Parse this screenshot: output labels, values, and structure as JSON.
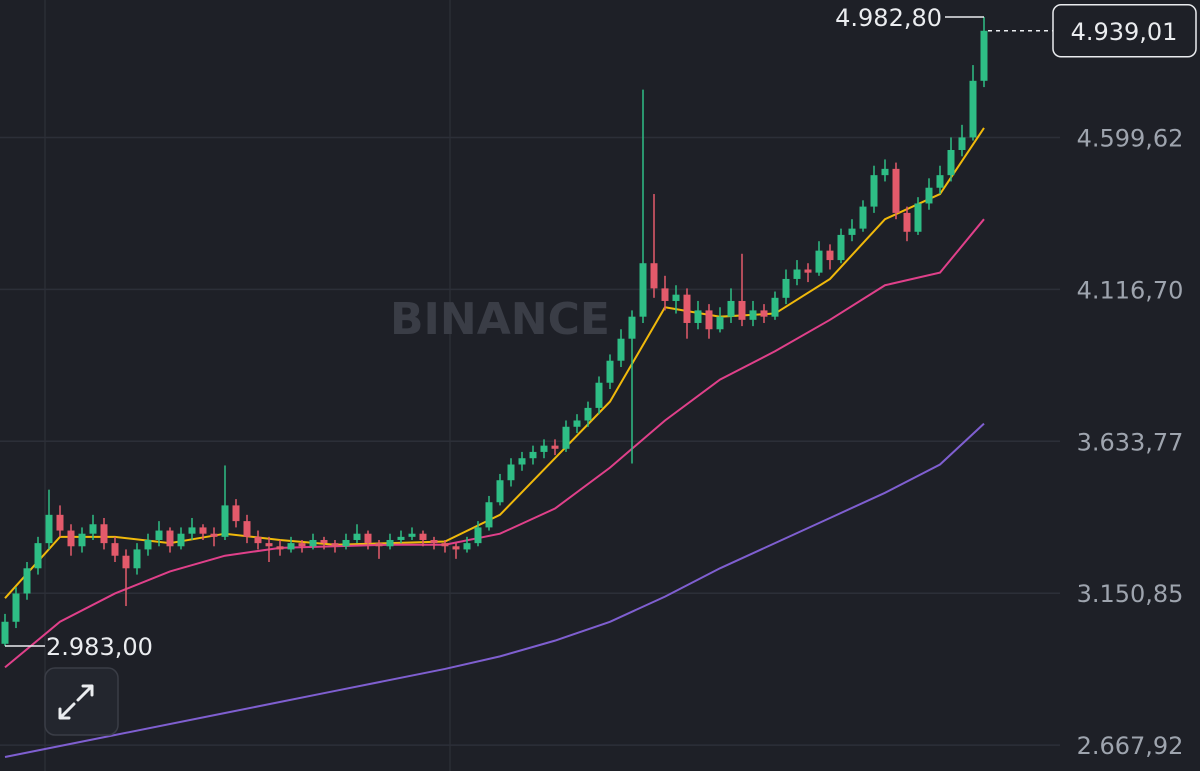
{
  "chart_data": {
    "type": "candlestick",
    "watermark": "BINANCE",
    "ylim": [
      2585.5,
      5036.9
    ],
    "yticks": [
      {
        "value": 4599.62,
        "label": "4.599,62"
      },
      {
        "value": 4116.7,
        "label": "4.116,70"
      },
      {
        "value": 3633.77,
        "label": "3.633,77"
      },
      {
        "value": 3150.85,
        "label": "3.150,85"
      },
      {
        "value": 2667.92,
        "label": "2.667,92"
      }
    ],
    "grid": true,
    "up_color": "#2ebd85",
    "down_color": "#e35a6b",
    "high_marker": {
      "value": 4982.8,
      "label": "4.982,80"
    },
    "low_marker": {
      "value": 2983.0,
      "label": "2.983,00"
    },
    "last_price": {
      "value": 4939.01,
      "label": "4.939,01"
    },
    "ohlc": [
      [
        2990,
        3085,
        2983,
        3060
      ],
      [
        3060,
        3170,
        3040,
        3150
      ],
      [
        3150,
        3250,
        3130,
        3230
      ],
      [
        3230,
        3330,
        3210,
        3310
      ],
      [
        3310,
        3480,
        3290,
        3400
      ],
      [
        3400,
        3430,
        3330,
        3350
      ],
      [
        3350,
        3370,
        3270,
        3300
      ],
      [
        3300,
        3360,
        3280,
        3340
      ],
      [
        3340,
        3400,
        3320,
        3370
      ],
      [
        3370,
        3390,
        3290,
        3310
      ],
      [
        3310,
        3330,
        3250,
        3270
      ],
      [
        3270,
        3290,
        3110,
        3230
      ],
      [
        3230,
        3310,
        3210,
        3290
      ],
      [
        3290,
        3340,
        3270,
        3320
      ],
      [
        3320,
        3380,
        3300,
        3350
      ],
      [
        3350,
        3360,
        3280,
        3300
      ],
      [
        3300,
        3360,
        3290,
        3340
      ],
      [
        3340,
        3390,
        3320,
        3360
      ],
      [
        3360,
        3370,
        3320,
        3340
      ],
      [
        3340,
        3360,
        3300,
        3330
      ],
      [
        3330,
        3557,
        3320,
        3430
      ],
      [
        3430,
        3450,
        3360,
        3380
      ],
      [
        3380,
        3400,
        3310,
        3330
      ],
      [
        3330,
        3350,
        3290,
        3310
      ],
      [
        3310,
        3330,
        3250,
        3300
      ],
      [
        3300,
        3320,
        3270,
        3290
      ],
      [
        3290,
        3330,
        3280,
        3310
      ],
      [
        3310,
        3320,
        3280,
        3300
      ],
      [
        3300,
        3340,
        3290,
        3320
      ],
      [
        3320,
        3330,
        3290,
        3310
      ],
      [
        3310,
        3320,
        3280,
        3300
      ],
      [
        3300,
        3340,
        3290,
        3320
      ],
      [
        3320,
        3370,
        3310,
        3340
      ],
      [
        3340,
        3350,
        3290,
        3310
      ],
      [
        3310,
        3320,
        3260,
        3300
      ],
      [
        3300,
        3340,
        3290,
        3320
      ],
      [
        3320,
        3350,
        3310,
        3330
      ],
      [
        3330,
        3360,
        3320,
        3340
      ],
      [
        3340,
        3350,
        3300,
        3320
      ],
      [
        3320,
        3330,
        3290,
        3310
      ],
      [
        3310,
        3320,
        3280,
        3300
      ],
      [
        3300,
        3310,
        3260,
        3290
      ],
      [
        3290,
        3330,
        3280,
        3310
      ],
      [
        3310,
        3380,
        3300,
        3360
      ],
      [
        3360,
        3460,
        3350,
        3440
      ],
      [
        3440,
        3530,
        3430,
        3510
      ],
      [
        3510,
        3580,
        3490,
        3560
      ],
      [
        3560,
        3600,
        3540,
        3580
      ],
      [
        3580,
        3620,
        3560,
        3600
      ],
      [
        3600,
        3640,
        3580,
        3620
      ],
      [
        3620,
        3640,
        3590,
        3610
      ],
      [
        3610,
        3700,
        3600,
        3680
      ],
      [
        3680,
        3720,
        3660,
        3700
      ],
      [
        3700,
        3760,
        3680,
        3740
      ],
      [
        3740,
        3840,
        3720,
        3820
      ],
      [
        3820,
        3910,
        3800,
        3890
      ],
      [
        3890,
        3990,
        3870,
        3960
      ],
      [
        3960,
        4050,
        3563,
        4030
      ],
      [
        4030,
        4752,
        4010,
        4200
      ],
      [
        4200,
        4420,
        4090,
        4120
      ],
      [
        4120,
        4160,
        4050,
        4080
      ],
      [
        4080,
        4130,
        4040,
        4100
      ],
      [
        4100,
        4120,
        3960,
        4010
      ],
      [
        4010,
        4080,
        3990,
        4050
      ],
      [
        4050,
        4070,
        3960,
        3990
      ],
      [
        3990,
        4060,
        3980,
        4030
      ],
      [
        4030,
        4120,
        4010,
        4080
      ],
      [
        4080,
        4230,
        4000,
        4020
      ],
      [
        4020,
        4080,
        4000,
        4050
      ],
      [
        4050,
        4070,
        4010,
        4030
      ],
      [
        4030,
        4110,
        4020,
        4090
      ],
      [
        4090,
        4180,
        4070,
        4150
      ],
      [
        4150,
        4210,
        4130,
        4180
      ],
      [
        4180,
        4200,
        4140,
        4170
      ],
      [
        4170,
        4270,
        4160,
        4240
      ],
      [
        4240,
        4260,
        4180,
        4210
      ],
      [
        4210,
        4310,
        4200,
        4290
      ],
      [
        4290,
        4340,
        4270,
        4310
      ],
      [
        4310,
        4400,
        4300,
        4380
      ],
      [
        4380,
        4510,
        4360,
        4480
      ],
      [
        4480,
        4530,
        4460,
        4500
      ],
      [
        4500,
        4520,
        4340,
        4360
      ],
      [
        4360,
        4380,
        4270,
        4300
      ],
      [
        4300,
        4410,
        4290,
        4390
      ],
      [
        4390,
        4470,
        4370,
        4440
      ],
      [
        4440,
        4510,
        4420,
        4480
      ],
      [
        4480,
        4600,
        4460,
        4560
      ],
      [
        4560,
        4640,
        4540,
        4600
      ],
      [
        4600,
        4830,
        4590,
        4780
      ],
      [
        4780,
        4982.8,
        4760,
        4939.01
      ]
    ],
    "lines": [
      {
        "color": "#f0b90b",
        "x": [
          0,
          5,
          10,
          15,
          20,
          25,
          30,
          35,
          40,
          45,
          50,
          55,
          60,
          65,
          70,
          75,
          80,
          85,
          89
        ],
        "values": [
          3135,
          3330,
          3330,
          3310,
          3340,
          3320,
          3305,
          3310,
          3315,
          3400,
          3580,
          3760,
          4060,
          4030,
          4040,
          4150,
          4340,
          4420,
          4630
        ]
      },
      {
        "color": "#e0408a",
        "x": [
          0,
          5,
          10,
          15,
          20,
          25,
          30,
          35,
          40,
          45,
          50,
          55,
          60,
          65,
          70,
          75,
          80,
          85,
          89
        ],
        "values": [
          2915,
          3060,
          3150,
          3220,
          3270,
          3295,
          3300,
          3305,
          3305,
          3340,
          3420,
          3550,
          3700,
          3830,
          3920,
          4020,
          4130,
          4170,
          4340
        ]
      },
      {
        "color": "#7f5fd0",
        "x": [
          0,
          10,
          20,
          30,
          40,
          45,
          50,
          55,
          60,
          65,
          70,
          75,
          80,
          85,
          89
        ],
        "values": [
          2630,
          2700,
          2770,
          2840,
          2910,
          2950,
          3000,
          3060,
          3140,
          3230,
          3310,
          3390,
          3470,
          3560,
          3690
        ]
      }
    ]
  }
}
